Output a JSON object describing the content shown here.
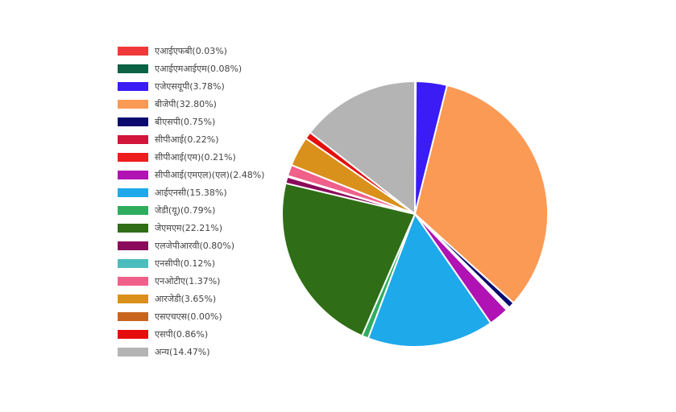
{
  "chart_data": {
    "type": "pie",
    "legend_position": "left",
    "slices": [
      {
        "label": "एआईएफबी(0.03%)",
        "value": 0.03,
        "color": "#f03a3a"
      },
      {
        "label": "एआईएमआईएम(0.08%)",
        "value": 0.08,
        "color": "#0b6245"
      },
      {
        "label": "एजेएसयूपी(3.78%)",
        "value": 3.78,
        "color": "#3b1cf5"
      },
      {
        "label": "बीजेपी(32.80%)",
        "value": 32.8,
        "color": "#fb9a55"
      },
      {
        "label": "बीएसपी(0.75%)",
        "value": 0.75,
        "color": "#0a0a6e"
      },
      {
        "label": "सीपीआई(0.22%)",
        "value": 0.22,
        "color": "#d2153a"
      },
      {
        "label": "सीपीआई(एम)(0.21%)",
        "value": 0.21,
        "color": "#ee1e1e"
      },
      {
        "label": "सीपीआई(एमएल)(एल)(2.48%)",
        "value": 2.48,
        "color": "#b012b4"
      },
      {
        "label": "आईएनसी(15.38%)",
        "value": 15.38,
        "color": "#1ea9ea"
      },
      {
        "label": "जेडी(यू)(0.79%)",
        "value": 0.79,
        "color": "#2fad5f"
      },
      {
        "label": "जेएमएम(22.21%)",
        "value": 22.21,
        "color": "#2f6e16"
      },
      {
        "label": "एलजेपीआरवी(0.80%)",
        "value": 0.8,
        "color": "#8c0a5c"
      },
      {
        "label": "एनसीपी(0.12%)",
        "value": 0.12,
        "color": "#4cbdbd"
      },
      {
        "label": "एनओटीए(1.37%)",
        "value": 1.37,
        "color": "#f0608a"
      },
      {
        "label": "आरजेडी(3.65%)",
        "value": 3.65,
        "color": "#d9911b"
      },
      {
        "label": "एसएचएस(0.00%)",
        "value": 0.0,
        "color": "#c8651c"
      },
      {
        "label": "एसपी(0.86%)",
        "value": 0.86,
        "color": "#e60d0d"
      },
      {
        "label": "अन्य(14.47%)",
        "value": 14.47,
        "color": "#b4b4b4"
      }
    ]
  }
}
